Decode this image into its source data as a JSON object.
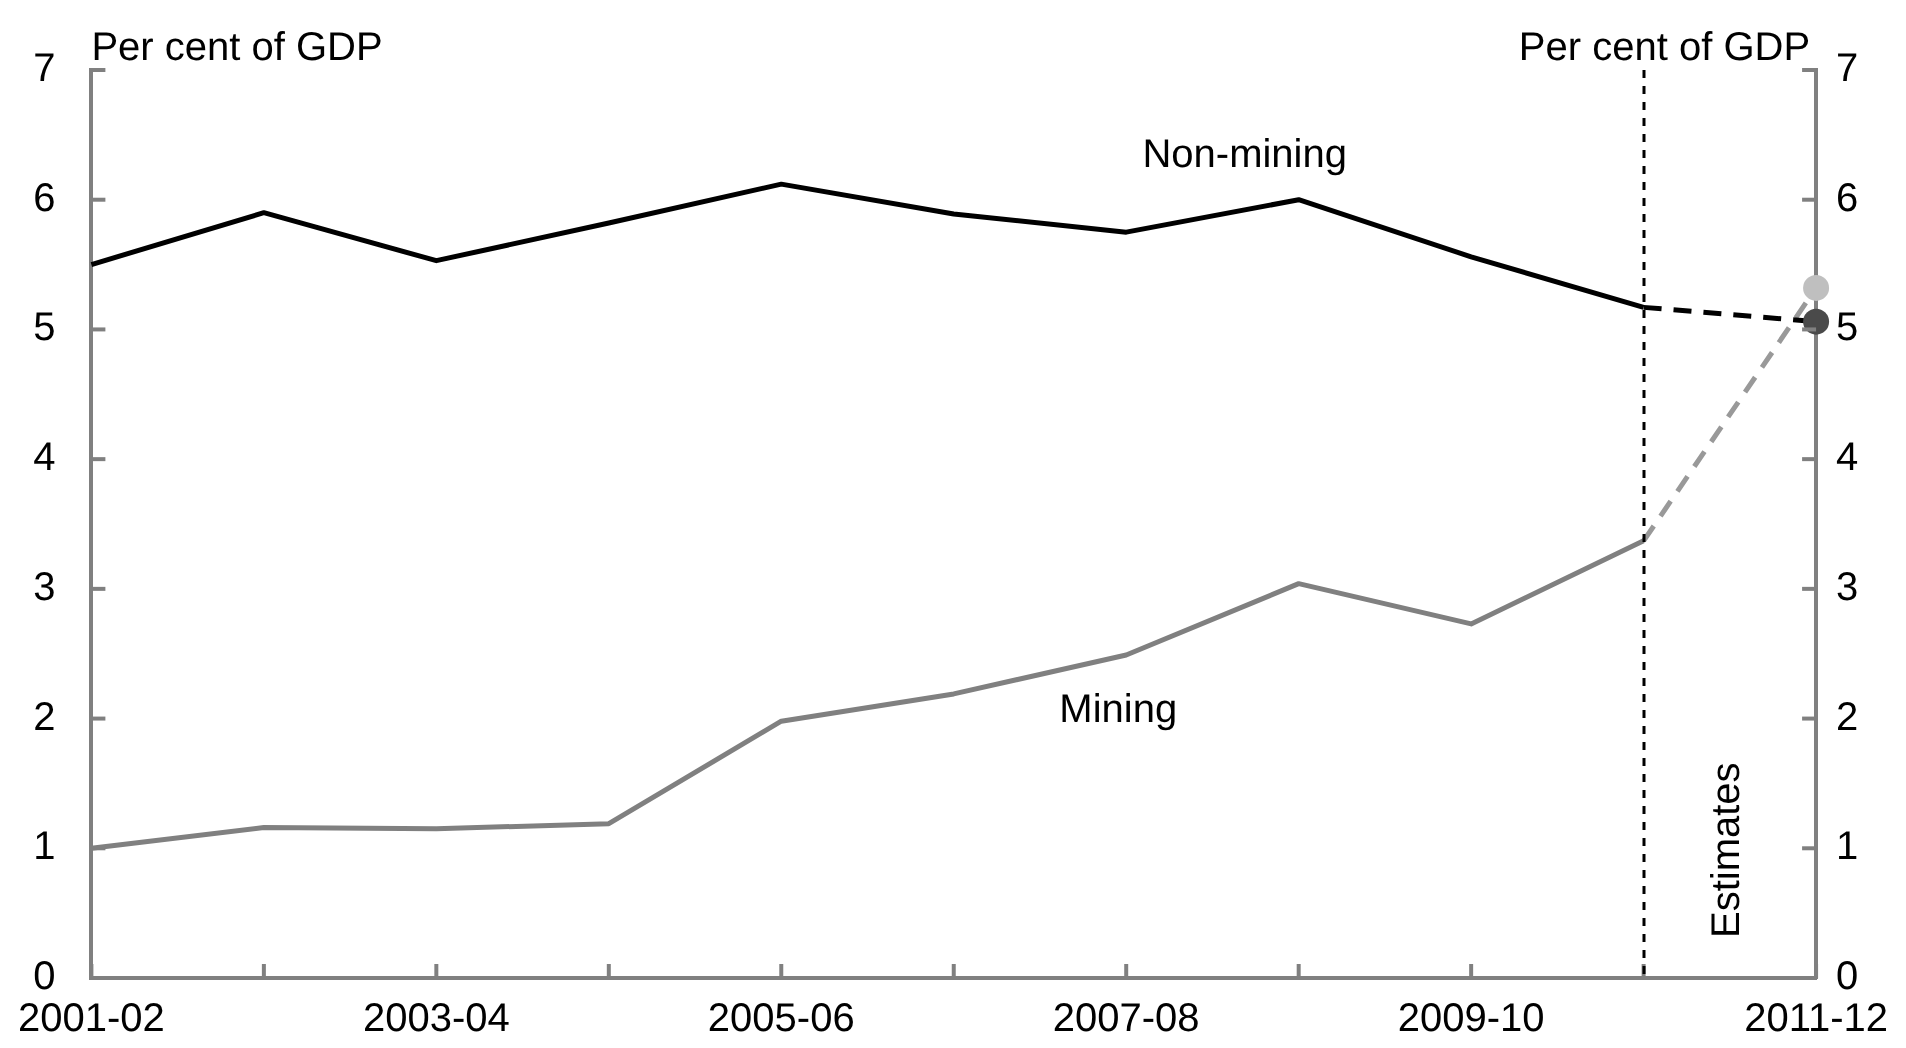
{
  "chart_data": {
    "type": "line",
    "ylabel": "Per cent of GDP",
    "y2label": "Per cent of GDP",
    "categories": [
      "2001-02",
      null,
      "2003-04",
      null,
      "2005-06",
      null,
      "2007-08",
      null,
      "2009-10",
      null,
      "2011-12"
    ],
    "ylim": [
      0,
      7
    ],
    "yticks": [
      0,
      1,
      2,
      3,
      4,
      5,
      6,
      7
    ],
    "y2lim": [
      0,
      7
    ],
    "y2ticks": [
      0,
      1,
      2,
      3,
      4,
      5,
      6,
      7
    ],
    "series": [
      {
        "name": "Non-mining",
        "color": "#000000",
        "values": [
          5.5,
          5.9,
          5.53,
          5.82,
          6.12,
          5.89,
          5.75,
          6.0,
          5.56,
          5.17,
          null
        ]
      },
      {
        "name": "Mining",
        "color": "#808080",
        "values": [
          1.0,
          1.16,
          1.15,
          1.19,
          1.98,
          2.19,
          2.49,
          3.04,
          2.73,
          3.37,
          null
        ]
      },
      {
        "color": "#000000",
        "line_style": "dashed",
        "values": [
          null,
          null,
          null,
          null,
          null,
          null,
          null,
          null,
          null,
          5.17,
          5.06
        ]
      },
      {
        "color": "#999999",
        "line_style": "dashed",
        "values": [
          null,
          null,
          null,
          null,
          null,
          null,
          null,
          null,
          null,
          3.37,
          5.32
        ]
      },
      {
        "type": "scatter",
        "color": "#4a4a4a",
        "marker": "circle",
        "values": [
          null,
          null,
          null,
          null,
          null,
          null,
          null,
          null,
          null,
          null,
          5.06
        ]
      },
      {
        "type": "scatter",
        "color": "#bfbfbf",
        "marker": "circle",
        "values": [
          null,
          null,
          null,
          null,
          null,
          null,
          null,
          null,
          null,
          null,
          5.32
        ]
      }
    ],
    "annotations": [
      "Estimates"
    ],
    "grid": false,
    "legend": false
  }
}
